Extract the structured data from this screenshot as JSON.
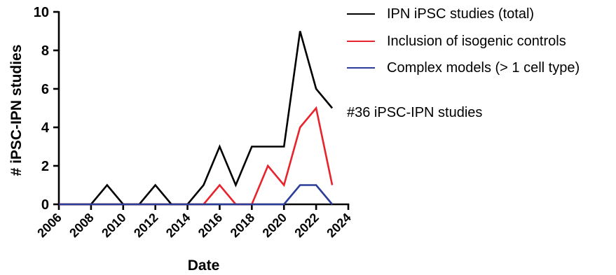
{
  "chart_data": {
    "type": "line",
    "x": [
      2006,
      2007,
      2008,
      2009,
      2010,
      2011,
      2012,
      2013,
      2014,
      2015,
      2016,
      2017,
      2018,
      2019,
      2020,
      2021,
      2022,
      2023
    ],
    "series": [
      {
        "name": "IPN iPSC studies (total)",
        "color": "#000000",
        "values": [
          0,
          0,
          0,
          1,
          0,
          0,
          1,
          0,
          0,
          1,
          3,
          1,
          3,
          3,
          3,
          9,
          6,
          5
        ]
      },
      {
        "name": "Inclusion of isogenic controls",
        "color": "#e8232b",
        "values": [
          0,
          0,
          0,
          0,
          0,
          0,
          0,
          0,
          0,
          0,
          1,
          0,
          0,
          2,
          1,
          4,
          5,
          1
        ]
      },
      {
        "name": "Complex models (> 1 cell type)",
        "color": "#2b3d9a",
        "values": [
          0,
          0,
          0,
          0,
          0,
          0,
          0,
          0,
          0,
          0,
          0,
          0,
          0,
          0,
          0,
          1,
          1,
          0
        ]
      }
    ],
    "xlabel": "Date",
    "ylabel": "# iPSC-IPN studies",
    "xlim": [
      2006,
      2024
    ],
    "ylim": [
      0,
      10
    ],
    "xticks": [
      2006,
      2008,
      2010,
      2012,
      2014,
      2016,
      2018,
      2020,
      2022,
      2024
    ],
    "yticks": [
      0,
      2,
      4,
      6,
      8,
      10
    ],
    "grid": false,
    "legend_position": "right",
    "annotation": "#36 iPSC-IPN studies"
  }
}
